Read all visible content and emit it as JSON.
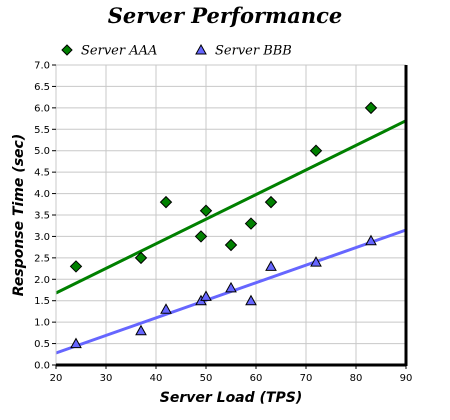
{
  "chart_data": {
    "type": "scatter",
    "title": "Server Performance",
    "xlabel": "Server Load (TPS)",
    "ylabel": "Response Time (sec)",
    "xlim": [
      20,
      90
    ],
    "ylim": [
      0,
      7
    ],
    "x_ticks": [
      20,
      30,
      40,
      50,
      60,
      70,
      80,
      90
    ],
    "y_ticks": [
      0,
      0.5,
      1,
      1.5,
      2,
      2.5,
      3,
      3.5,
      4,
      4.5,
      5,
      5.5,
      6,
      6.5,
      7
    ],
    "grid": true,
    "legend": "top-left",
    "series": [
      {
        "name": "Server AAA",
        "marker": "diamond",
        "color": "#008000",
        "trend_color": "#008000",
        "points": [
          {
            "x": 24,
            "y": 2.3
          },
          {
            "x": 37,
            "y": 2.5
          },
          {
            "x": 42,
            "y": 3.8
          },
          {
            "x": 49,
            "y": 3.0
          },
          {
            "x": 50,
            "y": 3.6
          },
          {
            "x": 55,
            "y": 2.8
          },
          {
            "x": 59,
            "y": 3.3
          },
          {
            "x": 63,
            "y": 3.8
          },
          {
            "x": 72,
            "y": 5.0
          },
          {
            "x": 83,
            "y": 6.0
          }
        ],
        "trendline": [
          {
            "x": 20,
            "y": 1.68
          },
          {
            "x": 90,
            "y": 5.7
          }
        ]
      },
      {
        "name": "Server BBB",
        "marker": "triangle",
        "color": "#6666ff",
        "trend_color": "#6666ff",
        "points": [
          {
            "x": 24,
            "y": 0.5
          },
          {
            "x": 37,
            "y": 0.8
          },
          {
            "x": 42,
            "y": 1.3
          },
          {
            "x": 49,
            "y": 1.5
          },
          {
            "x": 50,
            "y": 1.6
          },
          {
            "x": 55,
            "y": 1.8
          },
          {
            "x": 59,
            "y": 1.5
          },
          {
            "x": 63,
            "y": 2.3
          },
          {
            "x": 72,
            "y": 2.4
          },
          {
            "x": 83,
            "y": 2.9
          }
        ],
        "trendline": [
          {
            "x": 20,
            "y": 0.28
          },
          {
            "x": 90,
            "y": 3.15
          }
        ]
      }
    ]
  }
}
